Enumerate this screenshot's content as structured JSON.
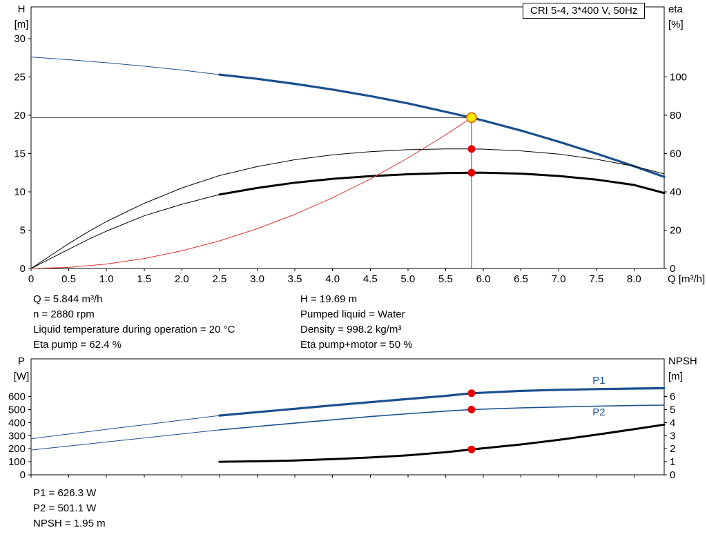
{
  "header": {
    "title": "CRI 5-4, 3*400 V, 50Hz"
  },
  "info_top": {
    "left": [
      "Q = 5.844 m³/h",
      "n = 2880 rpm",
      "Liquid temperature during operation = 20 °C",
      "Eta pump = 62.4 %"
    ],
    "right": [
      "H = 19.69 m",
      "Pumped liquid = Water",
      "Density = 998.2 kg/m³",
      "Eta pump+motor = 50 %"
    ]
  },
  "info_bottom": [
    "P1 = 626.3 W",
    "P2 = 501.1 W",
    "NPSH = 1.95 m"
  ],
  "colors": {
    "curve_blue": "#1a4f8f",
    "curve_black": "#000000",
    "system_red": "#e03030",
    "marker_red": "#e60000",
    "marker_yellow": "#ffe800",
    "marker_ring": "#e06000",
    "ref_line": "#444444"
  },
  "chart_data": [
    {
      "id": "chart-top",
      "type": "line",
      "title": "CRI 5-4 pump performance curve",
      "xlabel": "Q [m³/h]",
      "xlim": [
        0,
        8.4
      ],
      "ylim": [
        0,
        34.14
      ],
      "x_ticks": [
        0,
        0.5,
        1,
        1.5,
        2,
        2.5,
        3,
        3.5,
        4,
        4.5,
        5,
        5.5,
        6,
        6.5,
        7,
        7.5,
        8
      ],
      "x_tick_labels": [
        "0",
        "0.5",
        "1.0",
        "1.5",
        "2.0",
        "2.5",
        "3.0",
        "3.5",
        "4.0",
        "4.5",
        "5.0",
        "5.5",
        "6.0",
        "6.5",
        "7.0",
        "7.5",
        "8.0"
      ],
      "left_axis": {
        "title": [
          "H",
          "[m]"
        ],
        "ticks": [
          0,
          5,
          10,
          15,
          20,
          25,
          30
        ],
        "labels": [
          "0",
          "5",
          "10",
          "15",
          "20",
          "25",
          "30"
        ]
      },
      "right_axis": {
        "title": [
          "eta",
          "[%]"
        ],
        "ticks": [
          0,
          20,
          40,
          60,
          80,
          100
        ],
        "labels": [
          "0",
          "20",
          "40",
          "60",
          "80",
          "100"
        ],
        "scale": 0.25
      },
      "ref_lines": [
        {
          "type": "v",
          "x": 5.844,
          "y0": 0,
          "y1": 19.69,
          "color": "#444444"
        },
        {
          "type": "h",
          "y": 19.69,
          "x0": 0,
          "x1": 5.844,
          "color": "#444444"
        }
      ],
      "series": [
        {
          "name": "head-low-flow",
          "color": "#1a4f8f",
          "width": 1,
          "scale": 1,
          "x": [
            0,
            0.5,
            1,
            1.5,
            2,
            2.5
          ],
          "y": [
            27.6,
            27.25,
            26.85,
            26.4,
            25.9,
            25.3
          ]
        },
        {
          "name": "head",
          "color": "#1a4f8f",
          "width": 3.2,
          "scale": 1,
          "x": [
            2.5,
            3,
            3.5,
            4,
            4.5,
            5,
            5.5,
            5.844,
            6,
            6.5,
            7,
            7.5,
            8,
            8.4
          ],
          "y": [
            25.3,
            24.75,
            24.1,
            23.35,
            22.5,
            21.55,
            20.45,
            19.69,
            19.3,
            18.0,
            16.55,
            15.0,
            13.35,
            11.95
          ]
        },
        {
          "name": "eta-pump",
          "color": "#000000",
          "width": 1,
          "scale": 0.25,
          "x": [
            0,
            0.25,
            0.5,
            0.75,
            1,
            1.5,
            2,
            2.5,
            3,
            3.5,
            4,
            4.5,
            5,
            5.5,
            5.844,
            6,
            6.5,
            7,
            7.5,
            8,
            8.4
          ],
          "y": [
            0,
            6.5,
            13,
            19,
            24.5,
            34,
            42,
            48.5,
            53.2,
            56.8,
            59.3,
            61,
            62,
            62.4,
            62.4,
            62.3,
            61.4,
            59.7,
            57,
            53.4,
            49.4
          ]
        },
        {
          "name": "eta-pump-motor-low-flow",
          "color": "#000000",
          "width": 1,
          "scale": 0.25,
          "x": [
            0,
            0.25,
            0.5,
            0.75,
            1,
            1.5,
            2,
            2.5
          ],
          "y": [
            0,
            5,
            10,
            15,
            19.5,
            27.5,
            33.5,
            38.6
          ]
        },
        {
          "name": "eta-pump-motor",
          "color": "#000000",
          "width": 3,
          "scale": 0.25,
          "x": [
            2.5,
            3,
            3.5,
            4,
            4.5,
            5,
            5.5,
            5.844,
            6,
            6.5,
            7,
            7.5,
            8,
            8.4
          ],
          "y": [
            38.6,
            42,
            44.8,
            46.8,
            48.2,
            49.2,
            49.8,
            50,
            50,
            49.5,
            48.3,
            46.4,
            43.6,
            39.4
          ]
        },
        {
          "name": "system-curve",
          "color": "#e03030",
          "width": 1,
          "scale": 1,
          "x": [
            0,
            0.5,
            1,
            1.5,
            2,
            2.5,
            3,
            3.5,
            4,
            4.5,
            5,
            5.5,
            5.844
          ],
          "y": [
            0,
            0.14,
            0.58,
            1.3,
            2.31,
            3.6,
            5.19,
            7.06,
            9.22,
            11.67,
            14.41,
            17.44,
            19.69
          ]
        }
      ],
      "markers": [
        {
          "name": "eta-pump-point",
          "x": 5.844,
          "y": 62.4,
          "scale": 0.25,
          "r": 5.5,
          "fill": "#e60000",
          "drag": false
        },
        {
          "name": "eta-pump-motor-point",
          "x": 5.844,
          "y": 50,
          "scale": 0.25,
          "r": 5.5,
          "fill": "#e60000",
          "drag": false
        },
        {
          "name": "duty-point",
          "x": 5.844,
          "y": 19.69,
          "scale": 1,
          "r": 7,
          "fill": "#ffe800",
          "stroke": "#e06000",
          "sw": 1.6,
          "drag": true
        }
      ],
      "labels": []
    },
    {
      "id": "chart-bottom",
      "type": "line",
      "title": "Power and NPSH curves",
      "xlabel": "",
      "xlim": [
        0,
        8.4
      ],
      "ylim": [
        0,
        890
      ],
      "x_ticks": [
        0,
        0.5,
        1,
        1.5,
        2,
        2.5,
        3,
        3.5,
        4,
        4.5,
        5,
        5.5,
        6,
        6.5,
        7,
        7.5,
        8
      ],
      "x_tick_labels": null,
      "left_axis": {
        "title": [
          "P",
          "[W]"
        ],
        "ticks": [
          0,
          100,
          200,
          300,
          400,
          500,
          600
        ],
        "labels": [
          "0",
          "100",
          "200",
          "300",
          "400",
          "500",
          "600"
        ]
      },
      "right_axis": {
        "title": [
          "NPSH",
          "[m]"
        ],
        "ticks": [
          0,
          1,
          2,
          3,
          4,
          5,
          6
        ],
        "labels": [
          "0",
          "1",
          "2",
          "3",
          "4",
          "5",
          "6"
        ],
        "scale": 100
      },
      "ref_lines": [],
      "series": [
        {
          "name": "p1-low-flow",
          "color": "#1a4f8f",
          "width": 1,
          "scale": 1,
          "x": [
            0,
            0.5,
            1,
            1.5,
            2,
            2.5
          ],
          "y": [
            277,
            313,
            349,
            384,
            420,
            455
          ]
        },
        {
          "name": "p1",
          "color": "#1a4f8f",
          "width": 3.2,
          "scale": 1,
          "x": [
            2.5,
            3,
            3.5,
            4,
            4.5,
            5,
            5.5,
            5.844,
            6.5,
            7,
            7.5,
            8,
            8.4
          ],
          "y": [
            455,
            481,
            507,
            533,
            558,
            582,
            606,
            626.3,
            644,
            652,
            658,
            662,
            665
          ]
        },
        {
          "name": "p2-low-flow",
          "color": "#1a4f8f",
          "width": 1,
          "scale": 1,
          "x": [
            0,
            0.5,
            1,
            1.5,
            2,
            2.5
          ],
          "y": [
            190,
            221,
            252,
            283,
            314,
            345
          ]
        },
        {
          "name": "p2",
          "color": "#1a4f8f",
          "width": 1.6,
          "scale": 1,
          "x": [
            2.5,
            3,
            3.5,
            4,
            4.5,
            5,
            5.5,
            5.844,
            6.5,
            7,
            7.5,
            8,
            8.4
          ],
          "y": [
            345,
            371,
            397,
            422,
            447,
            469,
            489,
            501.1,
            514,
            521,
            527,
            532,
            535
          ]
        },
        {
          "name": "npsh",
          "color": "#000000",
          "width": 3,
          "scale": 100,
          "x": [
            2.5,
            3,
            3.5,
            4,
            4.5,
            5,
            5.5,
            5.844,
            6.5,
            7,
            7.5,
            8,
            8.4
          ],
          "y": [
            1.0,
            1.04,
            1.1,
            1.2,
            1.33,
            1.5,
            1.73,
            1.95,
            2.33,
            2.68,
            3.08,
            3.5,
            3.85
          ]
        }
      ],
      "markers": [
        {
          "name": "p1-point",
          "x": 5.844,
          "y": 626.3,
          "scale": 1,
          "r": 5.5,
          "fill": "#e60000",
          "drag": false
        },
        {
          "name": "p2-point",
          "x": 5.844,
          "y": 501.1,
          "scale": 1,
          "r": 5.5,
          "fill": "#e60000",
          "drag": false
        },
        {
          "name": "npsh-point",
          "x": 5.844,
          "y": 1.95,
          "scale": 100,
          "r": 5.5,
          "fill": "#e60000",
          "drag": false
        }
      ],
      "labels": [
        {
          "text": "P1",
          "x": 7.45,
          "y": 700,
          "scale": 1,
          "color": "#1a4f8f"
        },
        {
          "text": "P2",
          "x": 7.45,
          "y": 455,
          "scale": 1,
          "color": "#1a4f8f"
        }
      ]
    }
  ]
}
